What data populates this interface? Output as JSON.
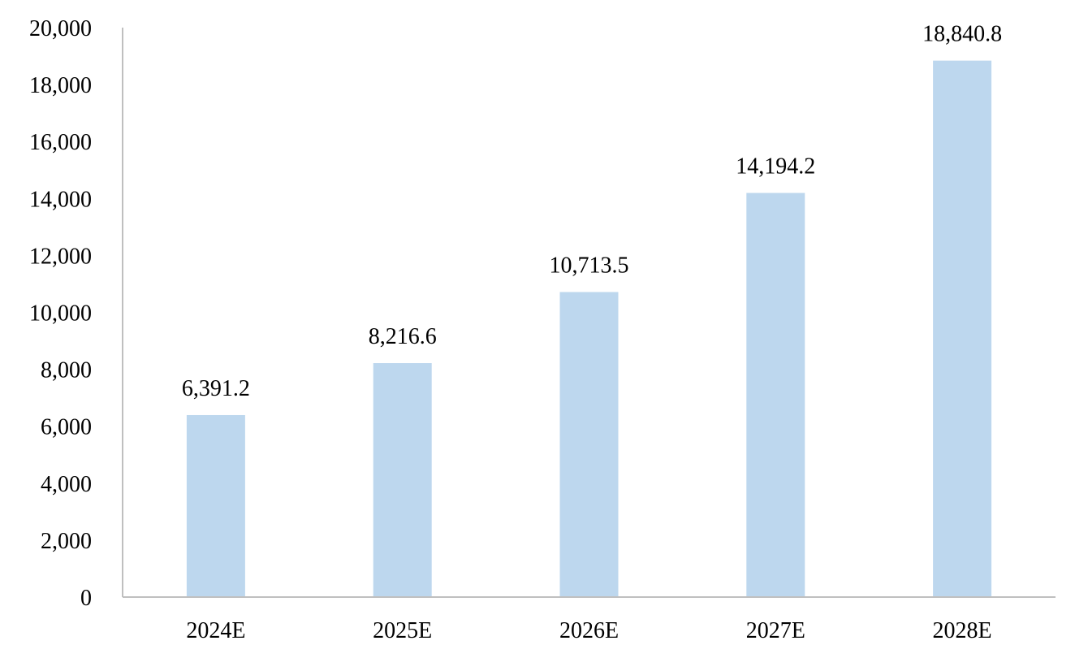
{
  "chart_data": {
    "type": "bar",
    "title": "",
    "xlabel": "",
    "ylabel": "",
    "categories": [
      "2024E",
      "2025E",
      "2026E",
      "2027E",
      "2028E"
    ],
    "values": [
      6391.2,
      8216.6,
      10713.5,
      14194.2,
      18840.8
    ],
    "value_labels": [
      "6,391.2",
      "8,216.6",
      "10,713.5",
      "14,194.2",
      "18,840.8"
    ],
    "ylim": [
      0,
      20000
    ],
    "yticks": [
      0,
      2000,
      4000,
      6000,
      8000,
      10000,
      12000,
      14000,
      16000,
      18000,
      20000
    ],
    "ytick_labels": [
      "0",
      "2,000",
      "4,000",
      "6,000",
      "8,000",
      "10,000",
      "12,000",
      "14,000",
      "16,000",
      "18,000",
      "20,000"
    ],
    "grid": false,
    "legend": "none",
    "bar_color": "#bdd7ee"
  }
}
